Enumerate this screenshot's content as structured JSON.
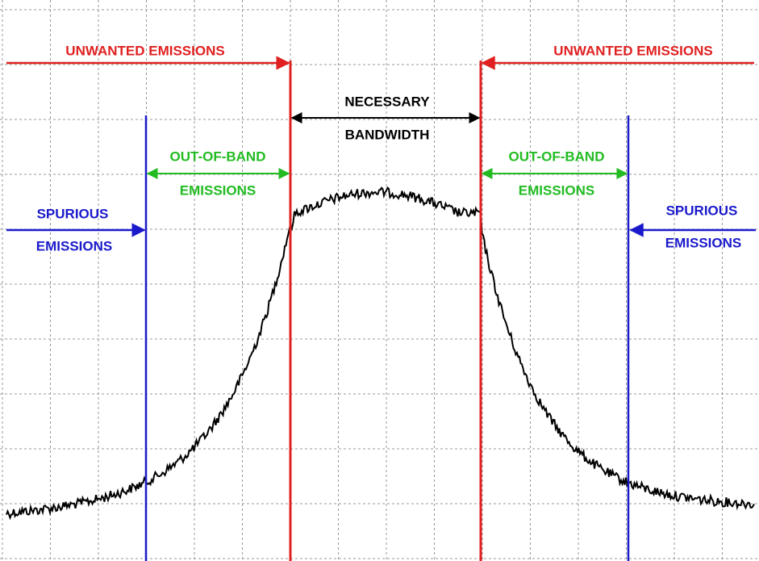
{
  "labels": {
    "unwanted_left": "UNWANTED EMISSIONS",
    "unwanted_right": "UNWANTED EMISSIONS",
    "necessary": [
      "NECESSARY",
      "BANDWIDTH"
    ],
    "out_of_band_left": [
      "OUT-OF-BAND",
      "EMISSIONS"
    ],
    "out_of_band_right": [
      "OUT-OF-BAND",
      "EMISSIONS"
    ],
    "spurious_left": [
      "SPURIOUS",
      "EMISSIONS"
    ],
    "spurious_right": [
      "SPURIOUS",
      "EMISSIONS"
    ]
  }
}
